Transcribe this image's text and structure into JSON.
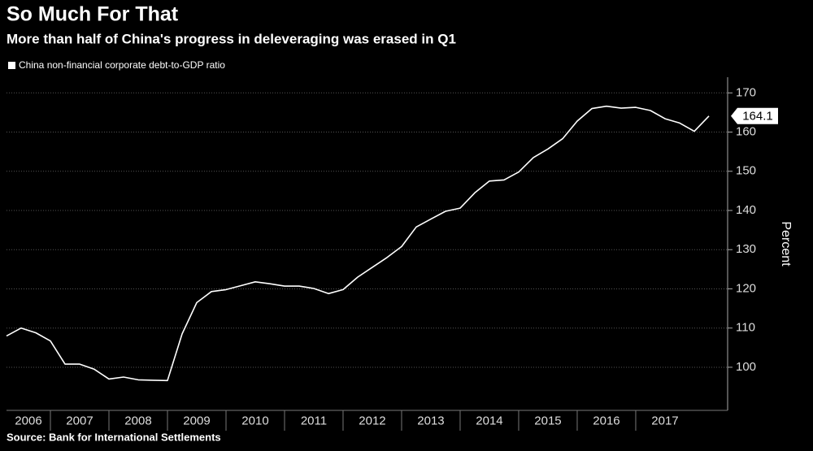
{
  "chart_data": {
    "type": "line",
    "title": "So Much For That",
    "subtitle": "More than half of China's progress in deleveraging was erased in Q1",
    "y_axis_label": "Percent",
    "source": "Source: Bank for International Settlements",
    "x": [
      2006.25,
      2006.5,
      2006.75,
      2007.0,
      2007.25,
      2007.5,
      2007.75,
      2008.0,
      2008.25,
      2008.5,
      2008.75,
      2009.0,
      2009.25,
      2009.5,
      2009.75,
      2010.0,
      2010.25,
      2010.5,
      2010.75,
      2011.0,
      2011.25,
      2011.5,
      2011.75,
      2012.0,
      2012.25,
      2012.5,
      2012.75,
      2013.0,
      2013.25,
      2013.5,
      2013.75,
      2014.0,
      2014.25,
      2014.5,
      2014.75,
      2015.0,
      2015.25,
      2015.5,
      2015.75,
      2016.0,
      2016.25,
      2016.5,
      2016.75,
      2017.0,
      2017.25,
      2017.5,
      2017.75,
      2018.0,
      2018.25
    ],
    "series": [
      {
        "name": "China non-financial corporate debt-to-GDP ratio",
        "color": "#ffffff",
        "values": [
          108,
          110,
          108.8,
          106.7,
          100.8,
          100.8,
          99.5,
          97,
          97.5,
          96.8,
          96.7,
          96.6,
          108.5,
          116.5,
          119.3,
          119.8,
          120.8,
          121.8,
          121.3,
          120.7,
          120.7,
          120.1,
          118.8,
          119.8,
          123,
          125.5,
          128,
          130.8,
          135.8,
          137.8,
          139.8,
          140.6,
          144.5,
          147.5,
          147.8,
          149.8,
          153.5,
          155.7,
          158.3,
          162.8,
          166,
          166.6,
          166.1,
          166.3,
          165.5,
          163.4,
          162.3,
          160.2,
          164.1
        ]
      }
    ],
    "xlim": [
      2006.25,
      2018.57
    ],
    "xticks": [
      2006,
      2007,
      2008,
      2009,
      2010,
      2011,
      2012,
      2013,
      2014,
      2015,
      2016,
      2017
    ],
    "ylim": [
      89,
      174
    ],
    "yticks": [
      100,
      110,
      120,
      130,
      140,
      150,
      160,
      170
    ],
    "grid": true,
    "legend": "top-left"
  }
}
